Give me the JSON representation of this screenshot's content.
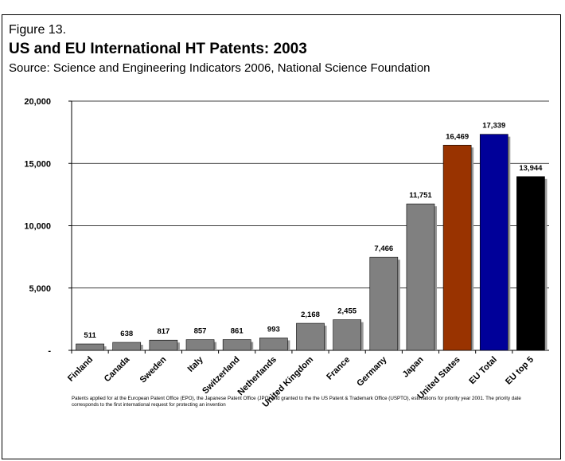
{
  "chart_data": {
    "type": "bar",
    "figure_label": "Figure 13.",
    "title": "US and EU International HT Patents: 2003",
    "subtitle": "Source: Science and Engineering Indicators 2006, National Science Foundation",
    "note": "Patents applied for at the European Patent Office (EPO), the Japanese Patent Office (JPO) and granted to the the US Patent & Trademark Office (USPTO), estimations for priority year 2001.  The priority date corresponds to the first international request for protecting an invention",
    "categories": [
      "Finland",
      "Canada",
      "Sweden",
      "Italy",
      "Switzerland",
      "Netherlands",
      "United Kingdom",
      "France",
      "Germany",
      "Japan",
      "United States",
      "EU Total",
      "EU top 5"
    ],
    "values": [
      511,
      638,
      817,
      857,
      861,
      993,
      2168,
      2455,
      7466,
      11751,
      16469,
      17339,
      13944
    ],
    "value_labels": [
      "511",
      "638",
      "817",
      "857",
      "861",
      "993",
      "2,168",
      "2,455",
      "7,466",
      "11,751",
      "16,469",
      "17,339",
      "13,944"
    ],
    "colors": [
      "#808080",
      "#808080",
      "#808080",
      "#808080",
      "#808080",
      "#808080",
      "#808080",
      "#808080",
      "#808080",
      "#808080",
      "#993300",
      "#000099",
      "#000000"
    ],
    "ylim": [
      0,
      20000
    ],
    "yticks": [
      {
        "value": 0,
        "label": "-"
      },
      {
        "value": 5000,
        "label": "5,000"
      },
      {
        "value": 10000,
        "label": "10,000"
      },
      {
        "value": 15000,
        "label": "15,000"
      },
      {
        "value": 20000,
        "label": "20,000"
      }
    ],
    "grid": true
  }
}
